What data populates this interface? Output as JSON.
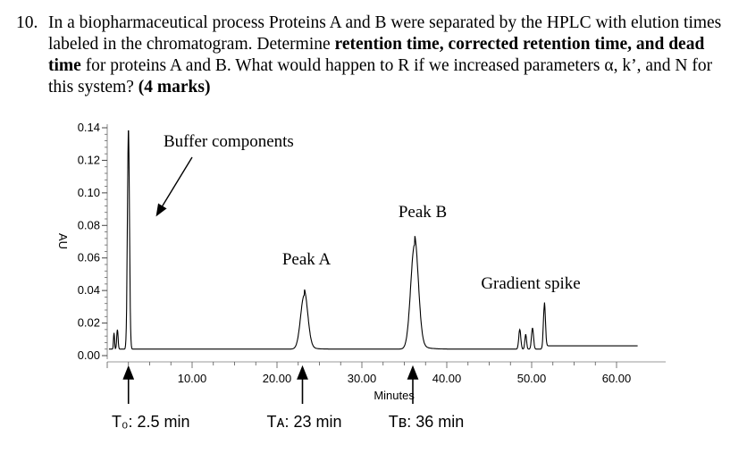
{
  "question": {
    "number": "10.",
    "t1": "In a biopharmaceutical process Proteins A and B were separated by the HPLC with elution times labeled in the chromatogram. Determine ",
    "b1": "retention time, corrected retention time, and dead time",
    "t2": " for proteins A and B. What would happen to R if we increased parameters α, k’, and N for this system? ",
    "b2": "(4 marks)"
  },
  "chart_data": {
    "type": "line",
    "xlabel": "Minutes",
    "ylabel": "AU",
    "xlim": [
      0,
      63
    ],
    "ylim": [
      0,
      0.14
    ],
    "x_ticks": [
      "10.00",
      "20.00",
      "30.00",
      "40.00",
      "50.00",
      "60.00"
    ],
    "y_ticks": [
      "0.00",
      "0.02",
      "0.04",
      "0.06",
      "0.08",
      "0.10",
      "0.12",
      "0.14"
    ],
    "peaks": [
      {
        "label": "Buffer components",
        "x": 2.5,
        "height": 0.14
      },
      {
        "label": "Peak A",
        "x": 23.2,
        "height": 0.037
      },
      {
        "label": "Peak B",
        "x": 36.2,
        "height": 0.068
      },
      {
        "label": "Gradient spike",
        "x": 51.5,
        "height": 0.031
      }
    ],
    "annotations": [
      {
        "text": "Buffer components"
      },
      {
        "text": "Peak A"
      },
      {
        "text": "Peak B"
      },
      {
        "text": "Gradient spike"
      }
    ],
    "time_markers": [
      {
        "x": 2.5,
        "label": "T₀: 2.5 min"
      },
      {
        "x": 23,
        "label": "Tᴀ: 23 min"
      },
      {
        "x": 36,
        "label": "Tʙ: 36 min"
      }
    ]
  }
}
